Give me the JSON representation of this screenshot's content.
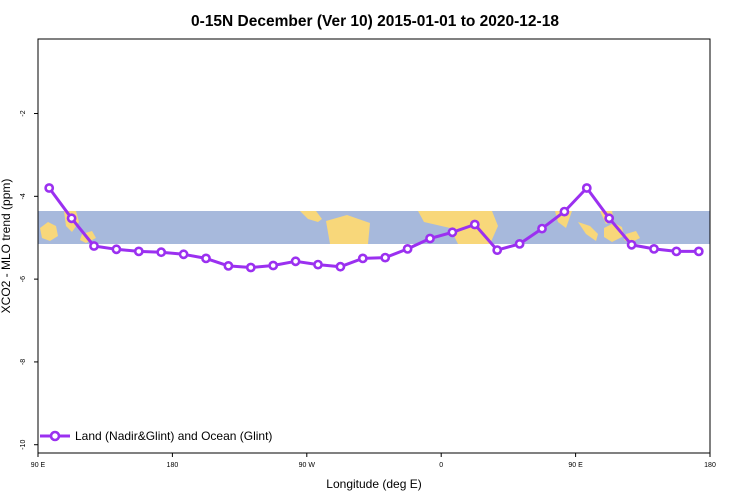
{
  "colors": {
    "series": "#9b30f0",
    "ocean": "#a7b9dc",
    "land": "#f8d77a",
    "frame": "#000000",
    "background": "#ffffff"
  },
  "chart_data": {
    "type": "line",
    "title": "0-15N December (Ver 10)   2015-01-01 to 2020-12-18",
    "xlabel": "Longitude (deg E)",
    "ylabel": "XCO2 - MLO trend (ppm)",
    "xlim": [
      90,
      540
    ],
    "ylim": [
      -10.2,
      -0.2
    ],
    "x_ticks": [
      {
        "value": 90,
        "label": "90 E"
      },
      {
        "value": 180,
        "label": "180"
      },
      {
        "value": 270,
        "label": "90 W"
      },
      {
        "value": 360,
        "label": "0"
      },
      {
        "value": 450,
        "label": "90 E"
      },
      {
        "value": 540,
        "label": "180"
      }
    ],
    "y_ticks": [
      {
        "value": -2,
        "label": "-2"
      },
      {
        "value": -4,
        "label": "-4"
      },
      {
        "value": -6,
        "label": "-6"
      },
      {
        "value": -8,
        "label": "-8"
      },
      {
        "value": -10,
        "label": "-10"
      }
    ],
    "map_band": {
      "lat_range": [
        0,
        15
      ],
      "y_range": [
        -5.27,
        -4.47
      ],
      "description": "0-15N latitude band map"
    },
    "legend": {
      "position": "bottom-left"
    },
    "series": [
      {
        "name": "Land (Nadir&Glint) and Ocean (Glint)",
        "x": [
          97.5,
          112.5,
          127.5,
          142.5,
          157.5,
          172.5,
          187.5,
          202.5,
          217.5,
          232.5,
          247.5,
          262.5,
          277.5,
          292.5,
          307.5,
          322.5,
          337.5,
          352.5,
          367.5,
          382.5,
          397.5,
          412.5,
          427.5,
          442.5,
          457.5,
          472.5,
          487.5,
          502.5,
          517.5,
          532.5
        ],
        "values": [
          -3.8,
          -4.53,
          -5.2,
          -5.28,
          -5.33,
          -5.35,
          -5.4,
          -5.5,
          -5.68,
          -5.72,
          -5.67,
          -5.57,
          -5.65,
          -5.7,
          -5.5,
          -5.48,
          -5.27,
          -5.02,
          -4.87,
          -4.68,
          -5.3,
          -5.15,
          -4.78,
          -4.37,
          -3.8,
          -4.53,
          -5.17,
          -5.27,
          -5.33,
          -5.33
        ]
      }
    ]
  }
}
